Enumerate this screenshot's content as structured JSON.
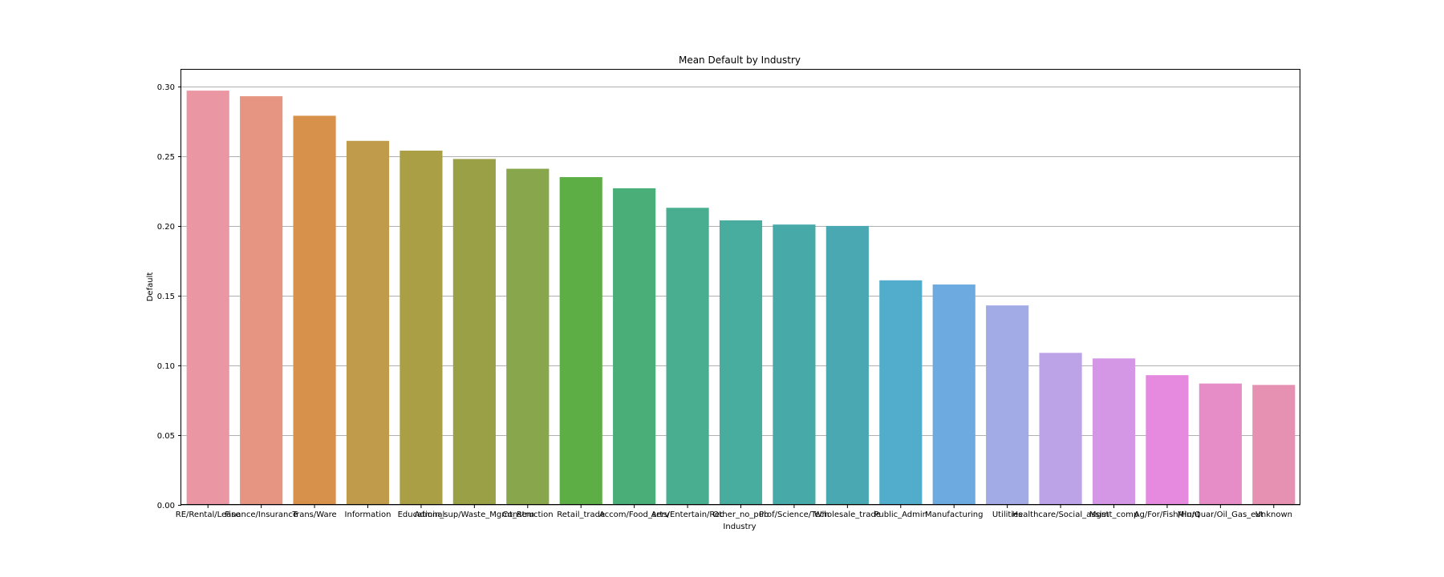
{
  "chart_data": {
    "type": "bar",
    "title": "Mean Default by Industry",
    "xlabel": "Industry",
    "ylabel": "Default",
    "ylim": [
      0,
      0.312
    ],
    "yticks": [
      "0.00",
      "0.05",
      "0.10",
      "0.15",
      "0.20",
      "0.25",
      "0.30"
    ],
    "ytick_values": [
      0,
      0.05,
      0.1,
      0.15,
      0.2,
      0.25,
      0.3
    ],
    "grid": "horizontal",
    "categories": [
      "RE/Rental/Lease",
      "Finance/Insurance",
      "Trans/Ware",
      "Information",
      "Educational",
      "Admin_sup/Waste_Mgmt_Rem",
      "Construction",
      "Retail_trade",
      "Accom/Food_serv",
      "Arts/Entertain/Rec",
      "Other_no_pub",
      "Prof/Science/Tech",
      "Wholesale_trade",
      "Public_Admin",
      "Manufacturing",
      "Utilities",
      "Healthcare/Social_assist",
      "Mgmt_comp",
      "Ag/For/Fish/Hunt",
      "Min/Quar/Oil_Gas_ext",
      "Unknown"
    ],
    "values": [
      0.297,
      0.293,
      0.279,
      0.261,
      0.254,
      0.248,
      0.241,
      0.235,
      0.227,
      0.213,
      0.204,
      0.201,
      0.2,
      0.161,
      0.158,
      0.143,
      0.109,
      0.105,
      0.093,
      0.087,
      0.086
    ],
    "colors": [
      "#ea96a3",
      "#e59581",
      "#d7914b",
      "#bf9b4b",
      "#aa9f45",
      "#99a045",
      "#88a64b",
      "#5eae46",
      "#49ae77",
      "#49ae8f",
      "#48ac9e",
      "#48aaa8",
      "#4aa8b2",
      "#52accb",
      "#6daae0",
      "#a3abe7",
      "#bca3e8",
      "#d497e5",
      "#e68ae0",
      "#e68dc8",
      "#e690b2"
    ]
  }
}
